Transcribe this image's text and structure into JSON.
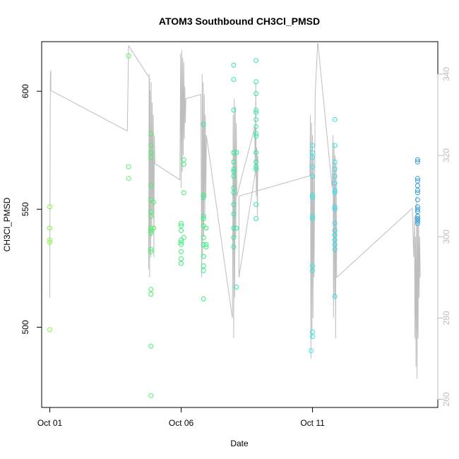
{
  "chart_data": {
    "type": "scatter",
    "title": "ATOM3 Southbound CH3Cl_PMSD",
    "xlabel": "Date",
    "ylabel": "CH3Cl_PMSD",
    "x_ticks": [
      {
        "label": "Oct 01",
        "day": 1
      },
      {
        "label": "Oct 06",
        "day": 6
      },
      {
        "label": "Oct 11",
        "day": 11
      }
    ],
    "y_ticks": [
      500,
      550,
      600
    ],
    "ylim": [
      466,
      621
    ],
    "y2_ticks": [
      260,
      280,
      300,
      320,
      340
    ],
    "y2lim": [
      258,
      348
    ],
    "xlim": [
      0.69,
      15.77
    ],
    "colors": {
      "line": "#bebebe",
      "points_start": "#7cfc3c",
      "points_mid": "#2af07f",
      "points_cyan": "#2ee6ef",
      "points_end": "#2e9fdc"
    },
    "series": [
      {
        "kind": "points",
        "points": [
          [
            1.0,
            551
          ],
          [
            1.0,
            542
          ],
          [
            1.0,
            537
          ],
          [
            1.0,
            536
          ],
          [
            1.0,
            499
          ],
          [
            4.0,
            615
          ],
          [
            4.0,
            568
          ],
          [
            4.0,
            563
          ],
          [
            4.85,
            582
          ],
          [
            4.85,
            577
          ],
          [
            4.85,
            574
          ],
          [
            4.85,
            574
          ],
          [
            4.85,
            572
          ],
          [
            4.85,
            560
          ],
          [
            4.85,
            554
          ],
          [
            4.85,
            549
          ],
          [
            4.85,
            547
          ],
          [
            4.85,
            542
          ],
          [
            4.85,
            541
          ],
          [
            4.85,
            540
          ],
          [
            4.85,
            533
          ],
          [
            4.85,
            532
          ],
          [
            4.85,
            516
          ],
          [
            4.85,
            514
          ],
          [
            4.85,
            492
          ],
          [
            4.85,
            471
          ],
          [
            4.95,
            542
          ],
          [
            4.95,
            553
          ],
          [
            6.0,
            544
          ],
          [
            6.0,
            543
          ],
          [
            6.0,
            541
          ],
          [
            6.0,
            537
          ],
          [
            6.0,
            536
          ],
          [
            6.0,
            535
          ],
          [
            6.0,
            532
          ],
          [
            6.0,
            529
          ],
          [
            6.0,
            527
          ],
          [
            6.1,
            571
          ],
          [
            6.1,
            569
          ],
          [
            6.1,
            557
          ],
          [
            6.1,
            538
          ],
          [
            6.85,
            586
          ],
          [
            6.85,
            556
          ],
          [
            6.85,
            555
          ],
          [
            6.85,
            547
          ],
          [
            6.85,
            546
          ],
          [
            6.85,
            543
          ],
          [
            6.85,
            538
          ],
          [
            6.85,
            535
          ],
          [
            6.85,
            530
          ],
          [
            6.85,
            526
          ],
          [
            6.85,
            524
          ],
          [
            6.85,
            512
          ],
          [
            6.95,
            542
          ],
          [
            6.95,
            535
          ],
          [
            6.95,
            534
          ],
          [
            8.0,
            611
          ],
          [
            8.0,
            605
          ],
          [
            8.0,
            592
          ],
          [
            8.0,
            574
          ],
          [
            8.0,
            570
          ],
          [
            8.0,
            567
          ],
          [
            8.0,
            566
          ],
          [
            8.0,
            564
          ],
          [
            8.0,
            559
          ],
          [
            8.0,
            557
          ],
          [
            8.0,
            552
          ],
          [
            8.0,
            548
          ],
          [
            8.0,
            542
          ],
          [
            8.0,
            538
          ],
          [
            8.0,
            534
          ],
          [
            8.1,
            574
          ],
          [
            8.1,
            542
          ],
          [
            8.1,
            517
          ],
          [
            8.85,
            613
          ],
          [
            8.85,
            604
          ],
          [
            8.85,
            599
          ],
          [
            8.85,
            592
          ],
          [
            8.85,
            591
          ],
          [
            8.85,
            588
          ],
          [
            8.85,
            585
          ],
          [
            8.85,
            582
          ],
          [
            8.85,
            581
          ],
          [
            8.85,
            574
          ],
          [
            8.85,
            570
          ],
          [
            8.85,
            568
          ],
          [
            8.85,
            567
          ],
          [
            8.85,
            552
          ],
          [
            8.85,
            546
          ],
          [
            11.0,
            577
          ],
          [
            11.0,
            574
          ],
          [
            11.0,
            572
          ],
          [
            11.0,
            568
          ],
          [
            11.0,
            564
          ],
          [
            11.0,
            556
          ],
          [
            11.0,
            555
          ],
          [
            11.0,
            547
          ],
          [
            11.0,
            546
          ],
          [
            11.0,
            526
          ],
          [
            11.0,
            524
          ],
          [
            11.0,
            498
          ],
          [
            11.0,
            496
          ],
          [
            10.95,
            490
          ],
          [
            11.85,
            588
          ],
          [
            11.85,
            577
          ],
          [
            11.85,
            570
          ],
          [
            11.85,
            567
          ],
          [
            11.85,
            564
          ],
          [
            11.85,
            561
          ],
          [
            11.85,
            558
          ],
          [
            11.85,
            557
          ],
          [
            11.85,
            551
          ],
          [
            11.85,
            550
          ],
          [
            11.85,
            544
          ],
          [
            11.85,
            541
          ],
          [
            11.85,
            539
          ],
          [
            11.85,
            537
          ],
          [
            11.85,
            535
          ],
          [
            11.85,
            533
          ],
          [
            11.85,
            513
          ],
          [
            15.0,
            571
          ],
          [
            15.0,
            570
          ],
          [
            15.0,
            563
          ],
          [
            15.0,
            562
          ],
          [
            15.0,
            560
          ],
          [
            15.0,
            558
          ],
          [
            15.0,
            557
          ],
          [
            15.0,
            554
          ],
          [
            15.0,
            551
          ],
          [
            15.0,
            550
          ],
          [
            15.0,
            549
          ],
          [
            15.0,
            547
          ],
          [
            15.0,
            546
          ],
          [
            15.0,
            546
          ],
          [
            15.0,
            545
          ],
          [
            15.0,
            544
          ]
        ]
      },
      {
        "kind": "line",
        "axis": "right",
        "points": [
          [
            1.0,
            285
          ],
          [
            1.02,
            340
          ],
          [
            1.04,
            341
          ],
          [
            1.04,
            336
          ],
          [
            3.95,
            326
          ],
          [
            4.0,
            347
          ],
          [
            4.8,
            339
          ],
          [
            4.76,
            292
          ],
          [
            4.78,
            340
          ],
          [
            4.8,
            290
          ],
          [
            4.82,
            336
          ],
          [
            4.84,
            295
          ],
          [
            4.86,
            338
          ],
          [
            4.88,
            300
          ],
          [
            4.9,
            333
          ],
          [
            4.92,
            305
          ],
          [
            4.94,
            330
          ],
          [
            4.96,
            295
          ],
          [
            4.98,
            325
          ],
          [
            5.0,
            318
          ],
          [
            5.95,
            314
          ],
          [
            5.98,
            345
          ],
          [
            6.0,
            312
          ],
          [
            6.02,
            346
          ],
          [
            6.04,
            316
          ],
          [
            6.06,
            344
          ],
          [
            6.08,
            320
          ],
          [
            6.1,
            343
          ],
          [
            6.12,
            324
          ],
          [
            6.14,
            337
          ],
          [
            6.16,
            328
          ],
          [
            6.18,
            334
          ],
          [
            6.75,
            335
          ],
          [
            6.78,
            290
          ],
          [
            6.8,
            340
          ],
          [
            6.82,
            295
          ],
          [
            6.84,
            338
          ],
          [
            6.86,
            300
          ],
          [
            6.88,
            335
          ],
          [
            6.9,
            305
          ],
          [
            6.92,
            330
          ],
          [
            6.94,
            310
          ],
          [
            6.96,
            325
          ],
          [
            7.95,
            280
          ],
          [
            7.98,
            330
          ],
          [
            8.0,
            275
          ],
          [
            8.02,
            334
          ],
          [
            8.04,
            285
          ],
          [
            8.06,
            332
          ],
          [
            8.08,
            300
          ],
          [
            8.1,
            328
          ],
          [
            8.12,
            310
          ],
          [
            8.8,
            327
          ],
          [
            8.82,
            315
          ],
          [
            8.84,
            338
          ],
          [
            8.86,
            310
          ],
          [
            8.88,
            322
          ],
          [
            8.9,
            305
          ],
          [
            8.92,
            320
          ],
          [
            8.2,
            290
          ],
          [
            8.2,
            310
          ],
          [
            10.9,
            315
          ],
          [
            10.92,
            330
          ],
          [
            10.94,
            270
          ],
          [
            10.96,
            328
          ],
          [
            10.98,
            275
          ],
          [
            11.0,
            325
          ],
          [
            11.02,
            280
          ],
          [
            11.04,
            320
          ],
          [
            11.06,
            290
          ],
          [
            11.1,
            335
          ],
          [
            11.2,
            348
          ],
          [
            11.75,
            312
          ],
          [
            11.78,
            325
          ],
          [
            11.8,
            280
          ],
          [
            11.82,
            323
          ],
          [
            11.84,
            285
          ],
          [
            11.86,
            320
          ],
          [
            11.88,
            275
          ],
          [
            11.9,
            318
          ],
          [
            11.92,
            290
          ],
          [
            14.8,
            307
          ],
          [
            14.85,
            295
          ],
          [
            14.88,
            305
          ],
          [
            14.9,
            275
          ],
          [
            14.92,
            300
          ],
          [
            14.94,
            268
          ],
          [
            14.96,
            310
          ],
          [
            14.98,
            265
          ],
          [
            15.0,
            305
          ],
          [
            15.02,
            275
          ],
          [
            15.04,
            305
          ],
          [
            15.06,
            285
          ],
          [
            15.08,
            300
          ],
          [
            15.1,
            290
          ]
        ]
      }
    ]
  }
}
